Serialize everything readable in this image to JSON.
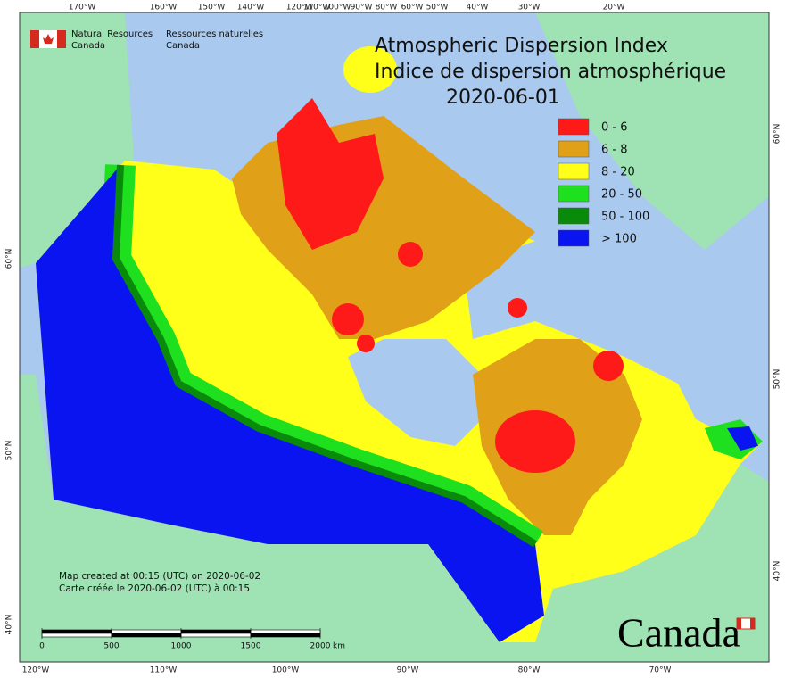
{
  "header": {
    "org_en_1": "Natural Resources",
    "org_en_2": "Canada",
    "org_fr_1": "Ressources naturelles",
    "org_fr_2": "Canada"
  },
  "title": {
    "line_1": "Atmospheric Dispersion Index",
    "line_2": "Indice de dispersion atmosphérique",
    "date": "2020-06-01"
  },
  "legend": [
    {
      "label": "0 - 6",
      "color": "#ff1a1a"
    },
    {
      "label": "6 - 8",
      "color": "#e0a017"
    },
    {
      "label": "8 - 20",
      "color": "#ffff1a"
    },
    {
      "label": "20 - 50",
      "color": "#1ee01e"
    },
    {
      "label": "50 - 100",
      "color": "#0a8a0a"
    },
    {
      "label": "> 100",
      "color": "#0a14f0"
    }
  ],
  "graticule": {
    "top": [
      "170°W",
      "160°W",
      "150°W",
      "140°W",
      "120°W",
      "110°W",
      "100°W",
      "90°W",
      "80°W",
      "60°W",
      "50°W",
      "40°W",
      "30°W",
      "20°W"
    ],
    "bottom": [
      "120°W",
      "110°W",
      "100°W",
      "90°W",
      "80°W",
      "70°W"
    ],
    "left": [
      "60°N",
      "50°N",
      "40°N"
    ],
    "right": [
      "60°N",
      "50°N",
      "40°N"
    ]
  },
  "scale_bar": {
    "ticks": [
      0,
      500,
      1000,
      1500,
      2000
    ],
    "unit": "km"
  },
  "credits": [
    "Map created at 00:15 (UTC) on 2020-06-02",
    "Carte créée le 2020-06-02 (UTC) à 00:15"
  ],
  "wordmark": "Canada"
}
